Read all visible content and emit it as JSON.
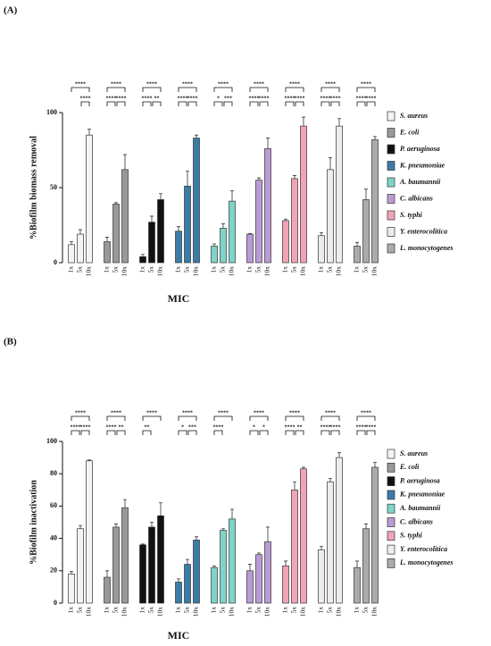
{
  "chart_data": [
    {
      "type": "bar",
      "panel_label": "(A)",
      "y_label": "%Biofilm biomass removal",
      "x_label": "MIC",
      "categories": [
        "1x",
        "5x",
        "10x"
      ],
      "ylim": [
        0,
        100
      ],
      "yticks": [
        0,
        50,
        100
      ],
      "series": [
        {
          "name": "S. aureus",
          "color": "#f4f4f4",
          "values": [
            12,
            19,
            85
          ],
          "errors": [
            2,
            3,
            4
          ],
          "significance": [
            null,
            "****",
            "****"
          ]
        },
        {
          "name": "E. coli",
          "color": "#999999",
          "values": [
            14,
            39,
            62
          ],
          "errors": [
            3,
            1,
            10
          ],
          "significance": [
            "****",
            "****",
            "****"
          ]
        },
        {
          "name": "P. aeruginosa",
          "color": "#111111",
          "values": [
            4,
            27,
            42
          ],
          "errors": [
            1.5,
            4,
            4
          ],
          "significance": [
            "****",
            "**",
            "****"
          ]
        },
        {
          "name": "K. pneumoniae",
          "color": "#3b7ca6",
          "values": [
            21,
            51,
            83
          ],
          "errors": [
            3,
            10,
            2
          ],
          "significance": [
            "****",
            "****",
            "****"
          ]
        },
        {
          "name": "A. baumannii",
          "color": "#7fd4c9",
          "values": [
            11,
            23,
            41
          ],
          "errors": [
            1.5,
            3,
            7
          ],
          "significance": [
            "*",
            "***",
            "****"
          ]
        },
        {
          "name": "C. albicans",
          "color": "#b99bd5",
          "values": [
            19,
            55,
            76
          ],
          "errors": [
            0.5,
            1.5,
            7
          ],
          "significance": [
            "****",
            "****",
            "****"
          ]
        },
        {
          "name": "S. typhi",
          "color": "#f2a4b6",
          "values": [
            28,
            56,
            91
          ],
          "errors": [
            1,
            2,
            6
          ],
          "significance": [
            "****",
            "****",
            "****"
          ]
        },
        {
          "name": "Y. enterocolitica",
          "color": "#ededed",
          "values": [
            18,
            62,
            91
          ],
          "errors": [
            2,
            8,
            5
          ],
          "significance": [
            "****",
            "****",
            "****"
          ]
        },
        {
          "name": "L. monocytogenes",
          "color": "#ababab",
          "values": [
            11,
            42,
            82
          ],
          "errors": [
            2.5,
            7,
            2
          ],
          "significance": [
            "****",
            "****",
            "****"
          ]
        }
      ]
    },
    {
      "type": "bar",
      "panel_label": "(B)",
      "y_label": "%Biofilm inactivation",
      "x_label": "MIC",
      "categories": [
        "1x",
        "5x",
        "10x"
      ],
      "ylim": [
        0,
        100
      ],
      "yticks": [
        0,
        20,
        40,
        60,
        80,
        100
      ],
      "series": [
        {
          "name": "S. aureus",
          "color": "#f4f4f4",
          "values": [
            18,
            46,
            88
          ],
          "errors": [
            1.5,
            2,
            0.5
          ],
          "significance": [
            "****",
            "****",
            "****"
          ]
        },
        {
          "name": "E. coli",
          "color": "#999999",
          "values": [
            16,
            47,
            59
          ],
          "errors": [
            4,
            2,
            5
          ],
          "significance": [
            "****",
            "**",
            "****"
          ]
        },
        {
          "name": "P. aeruginosa",
          "color": "#111111",
          "values": [
            36,
            47,
            54
          ],
          "errors": [
            0.5,
            3,
            8
          ],
          "significance": [
            "**",
            null,
            "****"
          ]
        },
        {
          "name": "K. pneumoniae",
          "color": "#3b7ca6",
          "values": [
            13,
            24,
            39
          ],
          "errors": [
            2,
            3,
            2
          ],
          "significance": [
            "*",
            "***",
            "****"
          ]
        },
        {
          "name": "A. baumannii",
          "color": "#7fd4c9",
          "values": [
            22,
            45,
            52
          ],
          "errors": [
            1,
            1,
            6
          ],
          "significance": [
            "****",
            null,
            "****"
          ]
        },
        {
          "name": "C. albicans",
          "color": "#b99bd5",
          "values": [
            20,
            30,
            38
          ],
          "errors": [
            4,
            1,
            9
          ],
          "significance": [
            "*",
            "*",
            "****"
          ]
        },
        {
          "name": "S. typhi",
          "color": "#f2a4b6",
          "values": [
            23,
            70,
            83
          ],
          "errors": [
            3,
            5,
            1
          ],
          "significance": [
            "****",
            "**",
            "****"
          ]
        },
        {
          "name": "Y. enterocolitica",
          "color": "#ededed",
          "values": [
            33,
            75,
            90
          ],
          "errors": [
            2,
            2,
            3
          ],
          "significance": [
            "****",
            "****",
            "****"
          ]
        },
        {
          "name": "L. monocytogenes",
          "color": "#ababab",
          "values": [
            22,
            46,
            84
          ],
          "errors": [
            4,
            3,
            3
          ],
          "significance": [
            "****",
            "****",
            "****"
          ]
        }
      ]
    }
  ]
}
